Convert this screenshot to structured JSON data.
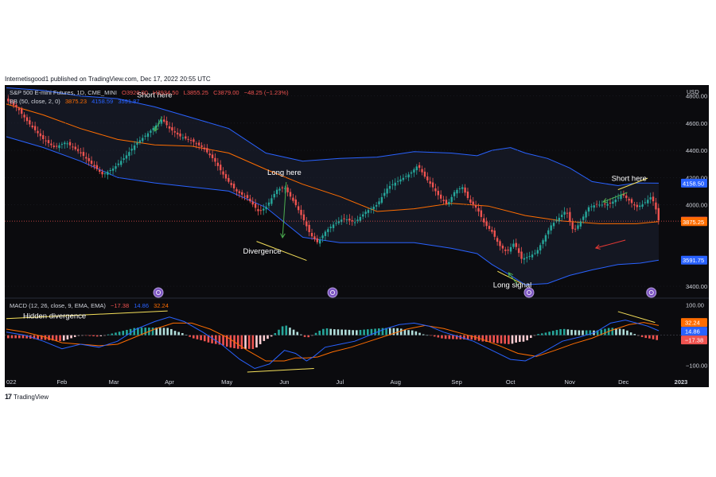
{
  "header": {
    "published": "Internetisgood1 published on TradingView.com, Dec 17, 2022 20:55 UTC"
  },
  "legend": {
    "title": "S&P 500 E-mini Futures, 1D, CME_MINI",
    "open": "O3920.00",
    "high": "H3934.50",
    "low": "L3855.25",
    "close": "C3879.00",
    "change": "−48.25 (−1.23%)",
    "bb_label": "BB (50, close, 2, 0)",
    "bb_basis": "3875.23",
    "bb_upper": "4158.59",
    "bb_lower": "3591.87",
    "macd_label": "MACD (12, 26, close, 9, EMA, EMA)",
    "macd_hist": "−17.38",
    "macd_line": "14.86",
    "macd_signal": "32.24"
  },
  "footer": {
    "brand": "TradingView"
  },
  "colors": {
    "bg": "#0b0b0e",
    "up": "#26a69a",
    "down": "#ef5350",
    "bb_band": "#2962ff",
    "bb_basis": "#ff6d00",
    "macd_line": "#2962ff",
    "signal_line": "#ff6d00",
    "annotation_line": "#f5e05a",
    "arrow_green": "#4caf50",
    "arrow_red": "#e53935",
    "text": "#d1d4dc",
    "text_white": "#ffffff"
  },
  "chart_data": {
    "type": "line",
    "title": "S&P 500 E-mini Futures, 1D, CME_MINI",
    "y_axis_unit": "USD",
    "price_ticks": [
      4800,
      4600,
      4400,
      4200,
      4000,
      3400
    ],
    "price_tick_labels": [
      "4800.00",
      "4600.00",
      "4400.00",
      "4200.00",
      "4000.00",
      "3400.00"
    ],
    "price_range": [
      3330,
      4880
    ],
    "macd_ticks": [
      100,
      -100
    ],
    "macd_tick_labels": [
      "100.00",
      "−100.00"
    ],
    "macd_range": [
      -135,
      112
    ],
    "x_labels": [
      "022",
      "Feb",
      "Mar",
      "Apr",
      "May",
      "Jun",
      "Jul",
      "Aug",
      "Sep",
      "Oct",
      "Nov",
      "Dec",
      "2023"
    ],
    "x_label_days": [
      0,
      30,
      58,
      88,
      119,
      150,
      180,
      210,
      243,
      272,
      304,
      333,
      364
    ],
    "price_badges": [
      {
        "value": "4158.50",
        "price": 4158.5,
        "color": "#2962ff"
      },
      {
        "value": "3879.00",
        "price": 3879,
        "color": "#ef5350"
      },
      {
        "value": "3875.25",
        "price": 3875.25,
        "color": "#ff6d00"
      },
      {
        "value": "3591.75",
        "price": 3591.75,
        "color": "#2962ff"
      }
    ],
    "macd_badges": [
      {
        "value": "32.24",
        "val": 32.24,
        "color": "#ff6d00"
      },
      {
        "value": "14.86",
        "val": 14.86,
        "color": "#2962ff"
      },
      {
        "value": "−17.38",
        "val": -17.38,
        "color": "#ef5350"
      }
    ],
    "price_path": [
      [
        0,
        4770
      ],
      [
        6,
        4710
      ],
      [
        12,
        4600
      ],
      [
        20,
        4480
      ],
      [
        26,
        4420
      ],
      [
        32,
        4460
      ],
      [
        40,
        4380
      ],
      [
        46,
        4300
      ],
      [
        52,
        4220
      ],
      [
        58,
        4270
      ],
      [
        64,
        4350
      ],
      [
        70,
        4450
      ],
      [
        76,
        4520
      ],
      [
        82,
        4600
      ],
      [
        84,
        4630
      ],
      [
        88,
        4560
      ],
      [
        94,
        4500
      ],
      [
        100,
        4470
      ],
      [
        106,
        4420
      ],
      [
        112,
        4330
      ],
      [
        118,
        4200
      ],
      [
        124,
        4100
      ],
      [
        130,
        4050
      ],
      [
        136,
        3950
      ],
      [
        140,
        3980
      ],
      [
        146,
        4110
      ],
      [
        150,
        4130
      ],
      [
        156,
        4000
      ],
      [
        160,
        3900
      ],
      [
        164,
        3780
      ],
      [
        168,
        3720
      ],
      [
        172,
        3800
      ],
      [
        176,
        3850
      ],
      [
        182,
        3900
      ],
      [
        188,
        3870
      ],
      [
        194,
        3950
      ],
      [
        200,
        4000
      ],
      [
        206,
        4130
      ],
      [
        212,
        4180
      ],
      [
        218,
        4230
      ],
      [
        222,
        4290
      ],
      [
        226,
        4200
      ],
      [
        230,
        4130
      ],
      [
        234,
        4050
      ],
      [
        238,
        4000
      ],
      [
        242,
        4100
      ],
      [
        246,
        4130
      ],
      [
        250,
        4020
      ],
      [
        254,
        3970
      ],
      [
        258,
        3860
      ],
      [
        262,
        3800
      ],
      [
        266,
        3700
      ],
      [
        270,
        3650
      ],
      [
        274,
        3720
      ],
      [
        278,
        3600
      ],
      [
        282,
        3620
      ],
      [
        286,
        3650
      ],
      [
        290,
        3750
      ],
      [
        294,
        3850
      ],
      [
        298,
        3900
      ],
      [
        302,
        3960
      ],
      [
        306,
        3800
      ],
      [
        310,
        3880
      ],
      [
        314,
        3980
      ],
      [
        318,
        4000
      ],
      [
        322,
        4000
      ],
      [
        326,
        4010
      ],
      [
        330,
        4050
      ],
      [
        332,
        4080
      ],
      [
        336,
        4030
      ],
      [
        340,
        3980
      ],
      [
        344,
        4010
      ],
      [
        348,
        4060
      ],
      [
        350,
        3990
      ],
      [
        352,
        3879
      ]
    ],
    "bb_upper_path": [
      [
        0,
        4860
      ],
      [
        20,
        4840
      ],
      [
        40,
        4800
      ],
      [
        60,
        4780
      ],
      [
        80,
        4720
      ],
      [
        100,
        4640
      ],
      [
        120,
        4560
      ],
      [
        140,
        4380
      ],
      [
        160,
        4320
      ],
      [
        180,
        4340
      ],
      [
        200,
        4350
      ],
      [
        220,
        4390
      ],
      [
        240,
        4380
      ],
      [
        254,
        4360
      ],
      [
        262,
        4400
      ],
      [
        272,
        4420
      ],
      [
        280,
        4380
      ],
      [
        292,
        4340
      ],
      [
        304,
        4270
      ],
      [
        316,
        4170
      ],
      [
        330,
        4140
      ],
      [
        340,
        4160
      ],
      [
        352,
        4158.5
      ]
    ],
    "bb_basis_path": [
      [
        0,
        4740
      ],
      [
        20,
        4660
      ],
      [
        40,
        4560
      ],
      [
        60,
        4480
      ],
      [
        80,
        4440
      ],
      [
        100,
        4430
      ],
      [
        120,
        4380
      ],
      [
        140,
        4260
      ],
      [
        160,
        4150
      ],
      [
        180,
        4060
      ],
      [
        200,
        3950
      ],
      [
        220,
        3970
      ],
      [
        240,
        4010
      ],
      [
        260,
        3990
      ],
      [
        280,
        3920
      ],
      [
        300,
        3880
      ],
      [
        320,
        3860
      ],
      [
        340,
        3860
      ],
      [
        352,
        3875.25
      ]
    ],
    "bb_lower_path": [
      [
        0,
        4500
      ],
      [
        20,
        4420
      ],
      [
        40,
        4320
      ],
      [
        60,
        4200
      ],
      [
        80,
        4160
      ],
      [
        100,
        4130
      ],
      [
        120,
        4100
      ],
      [
        140,
        3980
      ],
      [
        160,
        3760
      ],
      [
        180,
        3720
      ],
      [
        200,
        3720
      ],
      [
        220,
        3720
      ],
      [
        240,
        3680
      ],
      [
        254,
        3640
      ],
      [
        262,
        3560
      ],
      [
        272,
        3480
      ],
      [
        280,
        3410
      ],
      [
        292,
        3420
      ],
      [
        304,
        3480
      ],
      [
        316,
        3520
      ],
      [
        330,
        3560
      ],
      [
        342,
        3570
      ],
      [
        352,
        3591.75
      ]
    ],
    "macd_path": [
      [
        0,
        10
      ],
      [
        10,
        0
      ],
      [
        20,
        -20
      ],
      [
        30,
        -45
      ],
      [
        40,
        -30
      ],
      [
        50,
        -40
      ],
      [
        60,
        -20
      ],
      [
        70,
        20
      ],
      [
        80,
        45
      ],
      [
        88,
        60
      ],
      [
        96,
        45
      ],
      [
        106,
        10
      ],
      [
        116,
        -30
      ],
      [
        126,
        -80
      ],
      [
        134,
        -110
      ],
      [
        142,
        -95
      ],
      [
        150,
        -50
      ],
      [
        156,
        -60
      ],
      [
        162,
        -85
      ],
      [
        166,
        -70
      ],
      [
        172,
        -40
      ],
      [
        180,
        -30
      ],
      [
        188,
        -20
      ],
      [
        196,
        0
      ],
      [
        204,
        20
      ],
      [
        212,
        35
      ],
      [
        220,
        40
      ],
      [
        228,
        30
      ],
      [
        236,
        10
      ],
      [
        244,
        -5
      ],
      [
        252,
        -20
      ],
      [
        262,
        -50
      ],
      [
        272,
        -80
      ],
      [
        280,
        -85
      ],
      [
        290,
        -55
      ],
      [
        300,
        -20
      ],
      [
        310,
        -5
      ],
      [
        318,
        10
      ],
      [
        326,
        40
      ],
      [
        334,
        50
      ],
      [
        340,
        40
      ],
      [
        346,
        30
      ],
      [
        352,
        14.86
      ]
    ],
    "signal_path": [
      [
        0,
        20
      ],
      [
        10,
        10
      ],
      [
        20,
        -5
      ],
      [
        30,
        -25
      ],
      [
        40,
        -30
      ],
      [
        50,
        -35
      ],
      [
        60,
        -30
      ],
      [
        70,
        -5
      ],
      [
        80,
        20
      ],
      [
        90,
        40
      ],
      [
        100,
        40
      ],
      [
        110,
        20
      ],
      [
        120,
        -10
      ],
      [
        130,
        -50
      ],
      [
        140,
        -85
      ],
      [
        150,
        -85
      ],
      [
        156,
        -75
      ],
      [
        162,
        -75
      ],
      [
        168,
        -72
      ],
      [
        176,
        -55
      ],
      [
        186,
        -40
      ],
      [
        196,
        -20
      ],
      [
        206,
        0
      ],
      [
        216,
        20
      ],
      [
        226,
        32
      ],
      [
        236,
        22
      ],
      [
        246,
        5
      ],
      [
        256,
        -12
      ],
      [
        266,
        -35
      ],
      [
        276,
        -60
      ],
      [
        286,
        -70
      ],
      [
        296,
        -50
      ],
      [
        306,
        -28
      ],
      [
        316,
        -10
      ],
      [
        326,
        15
      ],
      [
        336,
        35
      ],
      [
        344,
        42
      ],
      [
        352,
        32.24
      ]
    ],
    "annotations": [
      {
        "text": "Short here",
        "day": 80,
        "price": 4790
      },
      {
        "text": "Long here",
        "day": 150,
        "price": 4220
      },
      {
        "text": "Divergence",
        "day": 138,
        "price": 3640
      },
      {
        "text": "Long signal",
        "day": 273,
        "price": 3390
      },
      {
        "text": "Short here",
        "day": 336,
        "price": 4175
      },
      {
        "text": "Hidden divergence",
        "day": 26,
        "macd": 55
      }
    ]
  }
}
